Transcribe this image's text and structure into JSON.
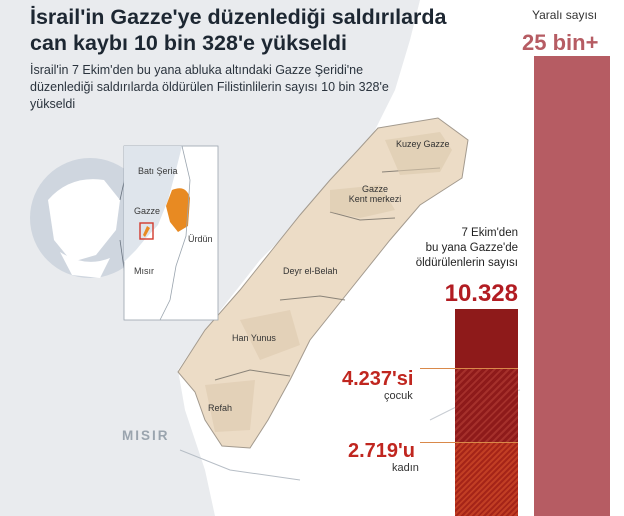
{
  "title": "İsrail'in Gazze'ye düzenlediği saldırılarda can kaybı 10 bin 328'e yükseldi",
  "subtitle": "İsrail'in 7 Ekim'den bu yana abluka altındaki Gazze Şeridi'ne düzenlediği saldırılarda öldürülen Filistinlilerin sayısı 10 bin 328'e yükseldi",
  "inset_map": {
    "labels": {
      "bati_seria": "Batı Şeria",
      "gazze": "Gazze",
      "urdun": "Ürdün",
      "misir": "Mısır"
    },
    "colors": {
      "west_bank": "#e88a22",
      "gaza_box": "#d23a2e"
    }
  },
  "main_map": {
    "sea_label": "MISIR",
    "cities": {
      "kuzey_gazze": "Kuzey Gazze",
      "gazze_kent_line1": "Gazze",
      "gazze_kent_line2": "Kent merkezi",
      "deyr_el_belah": "Deyr el-Belah",
      "han_yunus": "Han Yunus",
      "refah": "Refah"
    },
    "colors": {
      "strip_fill": "#ecdcc6",
      "sea": "#e9ebee",
      "land": "#ffffff"
    }
  },
  "injured": {
    "label": "Yaralı sayısı",
    "value": "25 bin+",
    "color": "#b65c63"
  },
  "killed": {
    "label_lines": [
      "7 Ekim'den",
      "bu yana Gazze'de",
      "öldürülenlerin sayısı"
    ],
    "value": "10.328",
    "color": "#8e1a1a",
    "children": {
      "value": "4.237'si",
      "label": "çocuk"
    },
    "women": {
      "value": "2.719'u",
      "label": "kadın"
    }
  }
}
